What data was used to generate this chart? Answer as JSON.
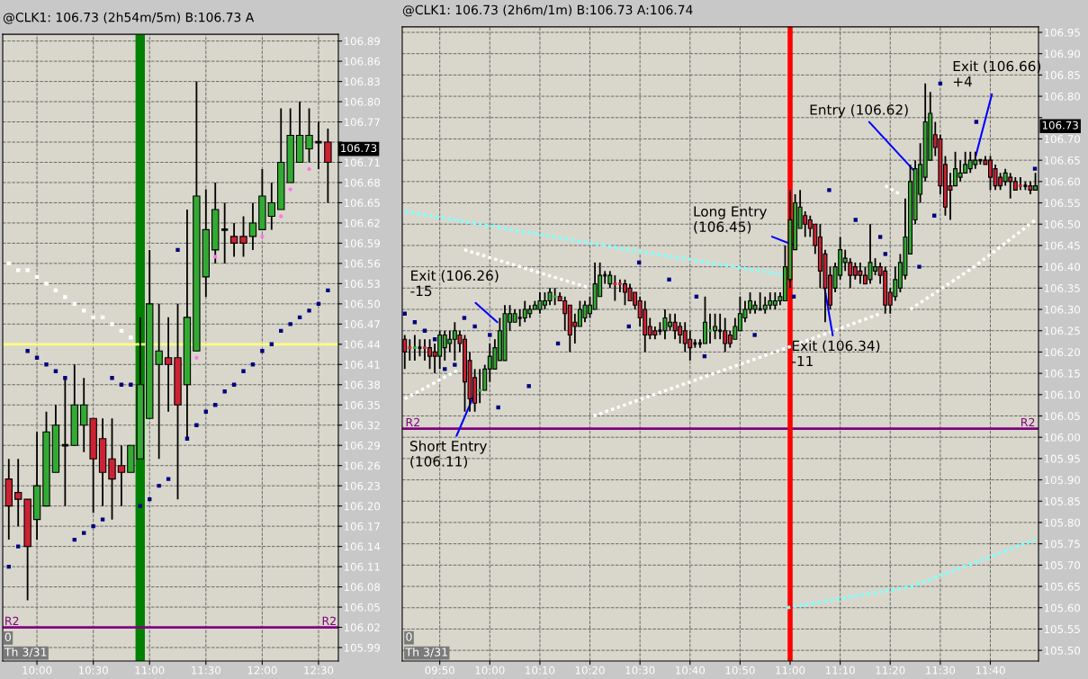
{
  "chart_data": [
    {
      "type": "candlestick",
      "title": "@CLK1: 106.73 (2h54m/5m) B:106.73 A",
      "x": [
        9.75,
        9.8333,
        9.9167,
        10,
        10.0833,
        10.1667,
        10.25,
        10.3333,
        10.4167,
        10.5,
        10.5833,
        10.6667,
        10.75,
        10.8333,
        10.9167,
        11,
        11.0833,
        11.1667,
        11.25,
        11.3333,
        11.4167,
        11.5,
        11.5833,
        11.6667,
        11.75,
        11.8333,
        11.9167,
        12,
        12.0833,
        12.1667,
        12.25,
        12.3333,
        12.4167,
        12.5,
        12.5833
      ],
      "ohlc": [
        [
          106.24,
          106.27,
          106.15,
          106.2
        ],
        [
          106.22,
          106.27,
          106.17,
          106.21
        ],
        [
          106.21,
          106.21,
          106.06,
          106.14
        ],
        [
          106.18,
          106.31,
          106.15,
          106.23
        ],
        [
          106.2,
          106.34,
          106.2,
          106.31
        ],
        [
          106.25,
          106.35,
          106.25,
          106.32
        ],
        [
          106.29,
          106.39,
          106.2,
          106.29
        ],
        [
          106.29,
          106.41,
          106.29,
          106.35
        ],
        [
          106.32,
          106.39,
          106.28,
          106.35
        ],
        [
          106.33,
          106.33,
          106.19,
          106.27
        ],
        [
          106.3,
          106.33,
          106.2,
          106.25
        ],
        [
          106.27,
          106.33,
          106.18,
          106.24
        ],
        [
          106.26,
          106.29,
          106.2,
          106.25
        ],
        [
          106.25,
          106.29,
          106.25,
          106.29
        ],
        [
          106.27,
          106.48,
          106.27,
          106.38
        ],
        [
          106.33,
          106.58,
          106.33,
          106.5
        ],
        [
          106.41,
          106.5,
          106.27,
          106.43
        ],
        [
          106.42,
          106.48,
          106.34,
          106.41
        ],
        [
          106.42,
          106.5,
          106.21,
          106.35
        ],
        [
          106.38,
          106.64,
          106.3,
          106.48
        ],
        [
          106.43,
          106.83,
          106.43,
          106.66
        ],
        [
          106.54,
          106.67,
          106.51,
          106.61
        ],
        [
          106.58,
          106.68,
          106.56,
          106.64
        ],
        [
          106.61,
          106.65,
          106.56,
          106.61
        ],
        [
          106.6,
          106.62,
          106.57,
          106.59
        ],
        [
          106.6,
          106.63,
          106.57,
          106.59
        ],
        [
          106.6,
          106.65,
          106.58,
          106.62
        ],
        [
          106.61,
          106.7,
          106.61,
          106.66
        ],
        [
          106.63,
          106.68,
          106.61,
          106.65
        ],
        [
          106.64,
          106.79,
          106.64,
          106.71
        ],
        [
          106.68,
          106.79,
          106.68,
          106.75
        ],
        [
          106.71,
          106.8,
          106.71,
          106.75
        ],
        [
          106.73,
          106.79,
          106.71,
          106.75
        ],
        [
          106.74,
          106.77,
          106.7,
          106.74
        ],
        [
          106.74,
          106.76,
          106.65,
          106.71
        ]
      ],
      "colors": [
        "#cc2233",
        "#cc2233",
        "#cc2233",
        "#33aa33",
        "#33aa33",
        "#33aa33",
        "#000000",
        "#33aa33",
        "#33aa33",
        "#cc2233",
        "#cc2233",
        "#cc2233",
        "#cc2233",
        "#33aa33",
        "#33aa33",
        "#33aa33",
        "#33aa33",
        "#cc2233",
        "#cc2233",
        "#33aa33",
        "#33aa33",
        "#33aa33",
        "#33aa33",
        "#000000",
        "#cc2233",
        "#cc2233",
        "#33aa33",
        "#33aa33",
        "#33aa33",
        "#33aa33",
        "#33aa33",
        "#33aa33",
        "#33aa33",
        "#000000",
        "#cc2233"
      ],
      "series": [
        {
          "type": "scatter",
          "marker": "square",
          "color": "#000080",
          "x": [
            9.75,
            9.8333,
            9.9167,
            10,
            10.0833,
            10.1667,
            10.25,
            10.3333,
            10.4167,
            10.5,
            10.5833,
            10.6667,
            10.75,
            10.8333,
            10.9167,
            11,
            11.0833,
            11.1667,
            11.25,
            11.3333,
            11.4167,
            11.5,
            11.5833,
            11.6667,
            11.75,
            11.8333,
            11.9167,
            12,
            12.0833,
            12.1667,
            12.25,
            12.3333,
            12.4167,
            12.5,
            12.5833
          ],
          "values": [
            106.11,
            106.14,
            106.43,
            106.42,
            106.41,
            106.4,
            106.39,
            106.15,
            106.16,
            106.17,
            106.18,
            106.39,
            106.38,
            106.38,
            106.2,
            106.21,
            106.23,
            106.24,
            106.58,
            106.3,
            106.32,
            106.34,
            106.35,
            106.37,
            106.38,
            106.4,
            106.41,
            106.43,
            106.44,
            106.46,
            106.47,
            106.48,
            106.49,
            106.5,
            106.52
          ]
        },
        {
          "type": "scatter",
          "marker": "circle",
          "color": "#ff77ee",
          "x": [
            11.4167,
            11.5833,
            12,
            12.1667,
            12.25,
            12.4167
          ],
          "values": [
            106.42,
            106.57,
            106.6,
            106.63,
            106.67,
            106.7
          ]
        },
        {
          "type": "scatter",
          "marker": "square",
          "color": "#ffffff",
          "x": [
            9.75,
            9.8333,
            9.9167,
            10,
            10.0833,
            10.1667,
            10.25,
            10.3333,
            10.4167,
            10.5,
            10.5833,
            10.6667,
            10.75,
            10.8333
          ],
          "values": [
            106.56,
            106.55,
            106.55,
            106.54,
            106.53,
            106.52,
            106.51,
            106.5,
            106.49,
            106.48,
            106.48,
            106.47,
            106.46,
            106.45
          ]
        }
      ],
      "bands": [
        {
          "axis": "x",
          "from": 10.875,
          "to": 10.958,
          "color": "#008000"
        }
      ],
      "ref_lines": [
        {
          "axis": "y",
          "value": 106.44,
          "color": "#ffff80"
        },
        {
          "axis": "y",
          "value": 106.02,
          "color": "#800080",
          "label": "R2"
        }
      ],
      "annotations": [
        "0",
        "Th 3/31",
        "106.73"
      ],
      "xlim": [
        9.696,
        12.676
      ],
      "ylim": [
        105.97,
        106.9
      ],
      "xticks": [
        {
          "value": 10,
          "label": "10:00"
        },
        {
          "value": 10.5,
          "label": "10:30"
        },
        {
          "value": 11,
          "label": "11:00"
        },
        {
          "value": 11.5,
          "label": "11:30"
        },
        {
          "value": 12,
          "label": "12:00"
        },
        {
          "value": 12.5,
          "label": "12:30"
        }
      ],
      "yticks": [
        105.99,
        106.02,
        106.05,
        106.08,
        106.11,
        106.14,
        106.17,
        {
          "value": 106.2,
          "label": "106.20"
        },
        106.23,
        106.26,
        106.29,
        106.32,
        106.35,
        106.38,
        106.41,
        106.44,
        106.47,
        {
          "value": 106.5,
          "label": "106.50"
        },
        106.53,
        106.56,
        106.59,
        106.62,
        106.65,
        106.68,
        106.71,
        {
          "value": 106.74,
          "label": null
        },
        106.77,
        {
          "value": 106.8,
          "label": "106.80"
        },
        106.83,
        106.86,
        106.89
      ],
      "grid": true
    },
    {
      "type": "candlestick",
      "title": "@CLK1: 106.73 (2h6m/1m) B:106.73 A:106.74",
      "x": [
        9.7167,
        9.7333,
        9.75,
        9.7667,
        9.7833,
        9.8,
        9.8167,
        9.8333,
        9.85,
        9.8667,
        9.8833,
        9.9,
        9.9167,
        9.9333,
        9.95,
        9.9667,
        9.9833,
        10,
        10.0167,
        10.0333,
        10.05,
        10.0667,
        10.0833,
        10.1,
        10.1167,
        10.1333,
        10.15,
        10.1667,
        10.1833,
        10.2,
        10.2167,
        10.2333,
        10.25,
        10.2667,
        10.2833,
        10.3,
        10.3167,
        10.3333,
        10.35,
        10.3667,
        10.3833,
        10.4,
        10.4167,
        10.4333,
        10.45,
        10.4667,
        10.4833,
        10.5,
        10.5167,
        10.5333,
        10.55,
        10.5667,
        10.5833,
        10.6,
        10.6167,
        10.6333,
        10.65,
        10.6667,
        10.6833,
        10.7,
        10.7167,
        10.7333,
        10.75,
        10.7667,
        10.7833,
        10.8,
        10.8167,
        10.8333,
        10.85,
        10.8667,
        10.8833,
        10.9,
        10.9167,
        10.9333,
        10.95,
        10.9667,
        10.9833,
        11,
        11.0167,
        11.0333,
        11.05,
        11.0667,
        11.0833,
        11.1,
        11.1167,
        11.1333,
        11.15,
        11.1667,
        11.1833,
        11.2,
        11.2167,
        11.2333,
        11.25,
        11.2667,
        11.2833,
        11.3,
        11.3167,
        11.3333,
        11.35,
        11.3667,
        11.3833,
        11.4,
        11.4167,
        11.4333,
        11.45,
        11.4667,
        11.4833,
        11.5,
        11.5167,
        11.5333,
        11.55,
        11.5667,
        11.5833,
        11.6,
        11.6167,
        11.6333,
        11.65,
        11.6667,
        11.6833,
        11.7,
        11.7167,
        11.7333,
        11.75,
        11.7667,
        11.7833,
        11.8,
        11.8167
      ],
      "ohlc": [
        [
          106.23,
          106.24,
          106.16,
          106.2
        ],
        [
          106.21,
          106.23,
          106.18,
          106.21
        ],
        [
          106.21,
          106.24,
          106.18,
          106.21
        ],
        [
          106.21,
          106.23,
          106.19,
          106.21
        ],
        [
          106.21,
          106.23,
          106.18,
          106.21
        ],
        [
          106.21,
          106.23,
          106.16,
          106.19
        ],
        [
          106.2,
          106.22,
          106.15,
          106.19
        ],
        [
          106.19,
          106.25,
          106.16,
          106.24
        ],
        [
          106.21,
          106.25,
          106.18,
          106.24
        ],
        [
          106.22,
          106.25,
          106.2,
          106.23
        ],
        [
          106.23,
          106.27,
          106.18,
          106.25
        ],
        [
          106.24,
          106.25,
          106.2,
          106.22
        ],
        [
          106.23,
          106.24,
          106.06,
          106.13
        ],
        [
          106.18,
          106.2,
          106.06,
          106.09
        ],
        [
          106.14,
          106.16,
          106.06,
          106.08
        ],
        [
          106.11,
          106.16,
          106.08,
          106.11
        ],
        [
          106.11,
          106.17,
          106.11,
          106.16
        ],
        [
          106.16,
          106.22,
          106.13,
          106.19
        ],
        [
          106.16,
          106.23,
          106.16,
          106.21
        ],
        [
          106.18,
          106.28,
          106.18,
          106.25
        ],
        [
          106.18,
          106.31,
          106.18,
          106.29
        ],
        [
          106.27,
          106.31,
          106.25,
          106.29
        ],
        [
          106.27,
          106.3,
          106.27,
          106.29
        ],
        [
          106.28,
          106.3,
          106.26,
          106.28
        ],
        [
          106.28,
          106.32,
          106.27,
          106.3
        ],
        [
          106.29,
          106.31,
          106.28,
          106.3
        ],
        [
          106.3,
          106.32,
          106.3,
          106.31
        ],
        [
          106.3,
          106.34,
          106.29,
          106.32
        ],
        [
          106.31,
          106.34,
          106.3,
          106.32
        ],
        [
          106.32,
          106.35,
          106.31,
          106.34
        ],
        [
          106.33,
          106.35,
          106.31,
          106.33
        ],
        [
          106.33,
          106.34,
          106.32,
          106.32
        ],
        [
          106.32,
          106.33,
          106.25,
          106.29
        ],
        [
          106.31,
          106.31,
          106.2,
          106.24
        ],
        [
          106.27,
          106.29,
          106.22,
          106.26
        ],
        [
          106.26,
          106.32,
          106.26,
          106.3
        ],
        [
          106.28,
          106.32,
          106.27,
          106.31
        ],
        [
          106.29,
          106.33,
          106.28,
          106.31
        ],
        [
          106.3,
          106.41,
          106.3,
          106.36
        ],
        [
          106.33,
          106.41,
          106.33,
          106.38
        ],
        [
          106.38,
          106.39,
          106.36,
          106.38
        ],
        [
          106.36,
          106.39,
          106.35,
          106.38
        ],
        [
          106.36,
          106.38,
          106.32,
          106.36
        ],
        [
          106.36,
          106.37,
          106.34,
          106.36
        ],
        [
          106.36,
          106.37,
          106.31,
          106.34
        ],
        [
          106.35,
          106.36,
          106.32,
          106.32
        ],
        [
          106.34,
          106.34,
          106.3,
          106.31
        ],
        [
          106.32,
          106.33,
          106.26,
          106.28
        ],
        [
          106.3,
          106.32,
          106.2,
          106.24
        ],
        [
          106.26,
          106.28,
          106.23,
          106.24
        ],
        [
          106.25,
          106.26,
          106.23,
          106.24
        ],
        [
          106.25,
          106.27,
          106.24,
          106.25
        ],
        [
          106.25,
          106.3,
          106.23,
          106.28
        ],
        [
          106.26,
          106.29,
          106.25,
          106.27
        ],
        [
          106.27,
          106.29,
          106.23,
          106.25
        ],
        [
          106.26,
          106.27,
          106.22,
          106.24
        ],
        [
          106.25,
          106.27,
          106.2,
          106.22
        ],
        [
          106.23,
          106.25,
          106.18,
          106.21
        ],
        [
          106.22,
          106.23,
          106.21,
          106.22
        ],
        [
          106.22,
          106.23,
          106.21,
          106.22
        ],
        [
          106.22,
          106.33,
          106.22,
          106.27
        ],
        [
          106.25,
          106.29,
          106.22,
          106.25
        ],
        [
          106.25,
          106.29,
          106.23,
          106.26
        ],
        [
          106.25,
          106.29,
          106.23,
          106.25
        ],
        [
          106.25,
          106.28,
          106.2,
          106.22
        ],
        [
          106.24,
          106.25,
          106.21,
          106.22
        ],
        [
          106.23,
          106.28,
          106.23,
          106.26
        ],
        [
          106.25,
          106.33,
          106.25,
          106.29
        ],
        [
          106.28,
          106.32,
          106.27,
          106.3
        ],
        [
          106.3,
          106.34,
          106.29,
          106.32
        ],
        [
          106.3,
          106.32,
          106.29,
          106.31
        ],
        [
          106.3,
          106.34,
          106.3,
          106.3
        ],
        [
          106.3,
          106.33,
          106.29,
          106.31
        ],
        [
          106.31,
          106.34,
          106.3,
          106.32
        ],
        [
          106.31,
          106.34,
          106.3,
          106.32
        ],
        [
          106.32,
          106.34,
          106.31,
          106.33
        ],
        [
          106.32,
          106.45,
          106.32,
          106.4
        ],
        [
          106.37,
          106.58,
          106.35,
          106.51
        ],
        [
          106.44,
          106.57,
          106.44,
          106.55
        ],
        [
          106.49,
          106.58,
          106.49,
          106.54
        ],
        [
          106.52,
          106.53,
          106.47,
          106.5
        ],
        [
          106.51,
          106.52,
          106.47,
          106.49
        ],
        [
          106.5,
          106.5,
          106.43,
          106.45
        ],
        [
          106.47,
          106.5,
          106.35,
          106.39
        ],
        [
          106.43,
          106.44,
          106.27,
          106.35
        ],
        [
          106.38,
          106.4,
          106.3,
          106.31
        ],
        [
          106.35,
          106.41,
          106.34,
          106.4
        ],
        [
          106.38,
          106.47,
          106.37,
          106.44
        ],
        [
          106.41,
          106.44,
          106.39,
          106.42
        ],
        [
          106.41,
          106.42,
          106.35,
          106.38
        ],
        [
          106.4,
          106.41,
          106.37,
          106.38
        ],
        [
          106.39,
          106.41,
          106.36,
          106.38
        ],
        [
          106.38,
          106.4,
          106.36,
          106.36
        ],
        [
          106.37,
          106.5,
          106.36,
          106.41
        ],
        [
          106.39,
          106.42,
          106.38,
          106.4
        ],
        [
          106.4,
          106.41,
          106.36,
          106.38
        ],
        [
          106.39,
          106.4,
          106.29,
          106.31
        ],
        [
          106.34,
          106.35,
          106.29,
          106.31
        ],
        [
          106.33,
          106.4,
          106.32,
          106.37
        ],
        [
          106.35,
          106.43,
          106.34,
          106.41
        ],
        [
          106.38,
          106.56,
          106.37,
          106.47
        ],
        [
          106.43,
          106.64,
          106.43,
          106.6
        ],
        [
          106.51,
          106.65,
          106.5,
          106.63
        ],
        [
          106.57,
          106.69,
          106.55,
          106.64
        ],
        [
          106.61,
          106.83,
          106.6,
          106.74
        ],
        [
          106.65,
          106.81,
          106.65,
          106.76
        ],
        [
          106.71,
          106.74,
          106.66,
          106.68
        ],
        [
          106.7,
          106.71,
          106.57,
          106.59
        ],
        [
          106.64,
          106.66,
          106.52,
          106.54
        ],
        [
          106.59,
          106.62,
          106.51,
          106.58
        ],
        [
          106.59,
          106.67,
          106.59,
          106.63
        ],
        [
          106.61,
          106.65,
          106.6,
          106.62
        ],
        [
          106.62,
          106.67,
          106.62,
          106.64
        ],
        [
          106.63,
          106.67,
          106.62,
          106.65
        ],
        [
          106.64,
          106.67,
          106.63,
          106.65
        ],
        [
          106.65,
          106.65,
          106.64,
          106.65
        ],
        [
          106.65,
          106.66,
          106.64,
          106.64
        ],
        [
          106.65,
          106.66,
          106.58,
          106.61
        ],
        [
          106.63,
          106.64,
          106.58,
          106.59
        ],
        [
          106.61,
          106.62,
          106.58,
          106.59
        ],
        [
          106.6,
          106.63,
          106.59,
          106.62
        ],
        [
          106.61,
          106.62,
          106.56,
          106.6
        ],
        [
          106.6,
          106.61,
          106.58,
          106.58
        ],
        [
          106.59,
          106.61,
          106.58,
          106.59
        ],
        [
          106.59,
          106.6,
          106.58,
          106.59
        ],
        [
          106.59,
          106.6,
          106.57,
          106.58
        ],
        [
          106.58,
          106.62,
          106.58,
          106.59
        ]
      ],
      "colors": [
        "#cc2233",
        "#cc2233",
        "#33aa33",
        "#000000",
        "#cc2233",
        "#cc2233",
        "#cc2233",
        "#33aa33",
        "#33aa33",
        "#33aa33",
        "#33aa33",
        "#cc2233",
        "#cc2233",
        "#cc2233",
        "#cc2233",
        "#33aa33",
        "#33aa33",
        "#33aa33",
        "#33aa33",
        "#33aa33",
        "#33aa33",
        "#33aa33",
        "#33aa33",
        "#000000",
        "#33aa33",
        "#33aa33",
        "#33aa33",
        "#33aa33",
        "#33aa33",
        "#33aa33",
        "#33aa33",
        "#cc2233",
        "#cc2233",
        "#cc2233",
        "#cc2233",
        "#33aa33",
        "#33aa33",
        "#33aa33",
        "#33aa33",
        "#33aa33",
        "#000000",
        "#33aa33",
        "#cc2233",
        "#cc2233",
        "#cc2233",
        "#cc2233",
        "#cc2233",
        "#cc2233",
        "#cc2233",
        "#cc2233",
        "#cc2233",
        "#000000",
        "#33aa33",
        "#33aa33",
        "#cc2233",
        "#cc2233",
        "#cc2233",
        "#cc2233",
        "#000000",
        "#000000",
        "#33aa33",
        "#33aa33",
        "#33aa33",
        "#000000",
        "#cc2233",
        "#cc2233",
        "#33aa33",
        "#33aa33",
        "#33aa33",
        "#33aa33",
        "#33aa33",
        "#000000",
        "#33aa33",
        "#33aa33",
        "#33aa33",
        "#33aa33",
        "#33aa33",
        "#33aa33",
        "#33aa33",
        "#33aa33",
        "#cc2233",
        "#cc2233",
        "#cc2233",
        "#cc2233",
        "#cc2233",
        "#cc2233",
        "#33aa33",
        "#33aa33",
        "#33aa33",
        "#cc2233",
        "#cc2233",
        "#cc2233",
        "#cc2233",
        "#33aa33",
        "#33aa33",
        "#cc2233",
        "#cc2233",
        "#cc2233",
        "#33aa33",
        "#33aa33",
        "#33aa33",
        "#33aa33",
        "#33aa33",
        "#33aa33",
        "#33aa33",
        "#33aa33",
        "#cc2233",
        "#cc2233",
        "#cc2233",
        "#cc2233",
        "#33aa33",
        "#33aa33",
        "#33aa33",
        "#33aa33",
        "#33aa33",
        "#000000",
        "#cc2233",
        "#cc2233",
        "#cc2233",
        "#cc2233",
        "#33aa33",
        "#cc2233",
        "#cc2233",
        "#cc2233",
        "#000000",
        "#cc2233",
        "#33aa33"
      ],
      "series": [
        {
          "type": "line",
          "line_style": "dotted",
          "color": "#80ffff",
          "x": [
            9.7167,
            10.463,
            10.99
          ],
          "values": [
            106.53,
            106.44,
            106.38
          ]
        },
        {
          "type": "line",
          "line_style": "dotted",
          "color": "#80ffff",
          "x": [
            10.99,
            11.405,
            11.8167
          ],
          "values": [
            105.6,
            105.65,
            105.76
          ]
        },
        {
          "type": "line",
          "line_style": "dotted",
          "color": "#ffffff",
          "x": [
            9.7167,
            9.9
          ],
          "values": [
            106.09,
            106.16
          ]
        },
        {
          "type": "line",
          "line_style": "dotted",
          "color": "#ffffff",
          "x": [
            9.915,
            10.3333
          ],
          "values": [
            106.44,
            106.35
          ]
        },
        {
          "type": "line",
          "line_style": "dotted",
          "color": "#ffffff",
          "x": [
            10.345,
            10.99,
            11.3
          ],
          "values": [
            106.05,
            106.21,
            106.29
          ]
        },
        {
          "type": "line",
          "line_style": "dotted",
          "color": "#ffffff",
          "x": [
            11.3167,
            11.3667
          ],
          "values": [
            106.59,
            106.57
          ]
        },
        {
          "type": "line",
          "line_style": "dotted",
          "color": "#ffffff",
          "x": [
            11.4,
            11.613,
            11.8167
          ],
          "values": [
            106.3,
            106.4,
            106.51
          ]
        },
        {
          "type": "scatter",
          "marker": "square",
          "color": "#000080",
          "x": [
            9.7167,
            9.75,
            9.7833,
            9.8167,
            9.85,
            9.8833,
            9.915,
            9.95,
            10.0,
            10.028,
            10.13,
            10.227,
            10.463,
            10.497,
            10.597,
            10.688,
            10.715,
            10.882,
            11.012,
            11.13,
            11.218,
            11.3,
            11.317,
            11.43,
            11.48,
            11.5,
            11.62,
            11.815
          ],
          "values": [
            106.29,
            106.27,
            106.25,
            106.23,
            106.16,
            106.17,
            106.28,
            106.26,
            106.24,
            106.07,
            106.12,
            106.22,
            106.26,
            106.41,
            106.37,
            106.33,
            106.19,
            106.24,
            106.33,
            106.58,
            106.51,
            106.47,
            106.43,
            106.4,
            106.52,
            106.83,
            106.74,
            106.63
          ]
        }
      ],
      "ref_lines": [
        {
          "axis": "y",
          "value": 106.02,
          "color": "#800080",
          "label": "R2"
        },
        {
          "axis": "x",
          "value": 11.0,
          "color": "#ff0000"
        }
      ],
      "annotations": [
        {
          "text": "Exit (106.26)\n-15",
          "x": 10.025,
          "y": 106.27
        },
        {
          "text": "Short Entry\n(106.11)",
          "x": 9.948,
          "y": 106.1
        },
        {
          "text": "Long Entry\n(106.45)",
          "x": 11.015,
          "y": 106.45
        },
        {
          "text": "Exit (106.34)\n-11",
          "x": 11.115,
          "y": 106.35
        },
        {
          "text": "Entry (106.62)",
          "x": 11.42,
          "y": 106.62
        },
        {
          "text": "Exit (106.66)\n+4",
          "x": 11.618,
          "y": 106.66
        },
        "0",
        "Th 3/31",
        "106.73"
      ],
      "xlim": [
        9.7083,
        11.827
      ],
      "ylim": [
        105.475,
        106.963
      ],
      "xticks": [
        {
          "value": 9.8333,
          "label": "09:50"
        },
        {
          "value": 10,
          "label": "10:00"
        },
        {
          "value": 10.1667,
          "label": "10:10"
        },
        {
          "value": 10.3333,
          "label": "10:20"
        },
        {
          "value": 10.5,
          "label": "10:30"
        },
        {
          "value": 10.6667,
          "label": "10:40"
        },
        {
          "value": 10.8333,
          "label": "10:50"
        },
        {
          "value": 11,
          "label": "11:00"
        },
        {
          "value": 11.1667,
          "label": "11:10"
        },
        {
          "value": 11.3333,
          "label": "11:20"
        },
        {
          "value": 11.5,
          "label": "11:30"
        },
        {
          "value": 11.6667,
          "label": "11:40"
        }
      ],
      "yticks": [
        {
          "value": 105.5,
          "label": "105.50"
        },
        105.55,
        {
          "value": 105.6,
          "label": "105.60"
        },
        105.65,
        {
          "value": 105.7,
          "label": "105.70"
        },
        105.75,
        {
          "value": 105.8,
          "label": "105.80"
        },
        105.85,
        {
          "value": 105.9,
          "label": "105.90"
        },
        105.95,
        {
          "value": 106.0,
          "label": "106.00"
        },
        106.05,
        {
          "value": 106.1,
          "label": "106.10"
        },
        106.15,
        {
          "value": 106.2,
          "label": "106.20"
        },
        106.25,
        {
          "value": 106.3,
          "label": "106.30"
        },
        106.35,
        {
          "value": 106.4,
          "label": "106.40"
        },
        106.45,
        {
          "value": 106.5,
          "label": "106.50"
        },
        106.55,
        {
          "value": 106.6,
          "label": "106.60"
        },
        106.65,
        {
          "value": 106.7,
          "label": "106.70"
        },
        {
          "value": 106.75,
          "label": null
        },
        {
          "value": 106.8,
          "label": "106.80"
        },
        106.85,
        {
          "value": 106.9,
          "label": "106.90"
        },
        106.95
      ],
      "grid": true
    }
  ]
}
